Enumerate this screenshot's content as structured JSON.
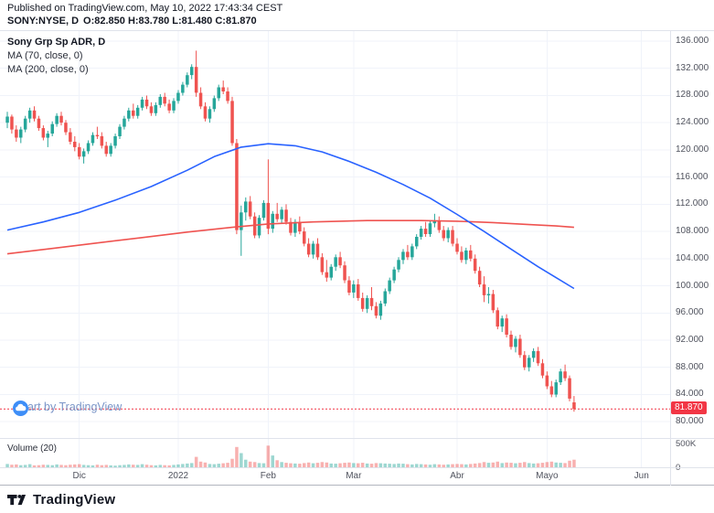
{
  "header": {
    "published_line": "Published on TradingView.com, May 10, 2022 17:43:34 CEST",
    "symbol": "SONY:NYSE, D",
    "ohlc": "O:82.850 H:83.780 L:81.480 C:81.870"
  },
  "legend": {
    "title": "Sony Grp Sp ADR, D",
    "ma1": "MA (70, close, 0)",
    "ma2": "MA (200, close, 0)"
  },
  "watermark": {
    "label": "Chart by TradingView"
  },
  "volume_pane": {
    "label": "Volume (20)",
    "axis_ticks": [
      "500K",
      "0"
    ]
  },
  "price_axis": {
    "min": 77.6,
    "max": 137.48,
    "ticks": [
      "136.000",
      "132.000",
      "128.000",
      "124.000",
      "120.000",
      "116.000",
      "112.000",
      "108.000",
      "104.000",
      "100.000",
      "96.000",
      "92.000",
      "88.000",
      "84.000",
      "80.000"
    ]
  },
  "last_price": {
    "value": 81.87,
    "label": "81.870"
  },
  "x_axis": {
    "ticks": [
      {
        "label": "Dic",
        "i": 16
      },
      {
        "label": "2022",
        "i": 38
      },
      {
        "label": "Feb",
        "i": 58
      },
      {
        "label": "Mar",
        "i": 77
      },
      {
        "label": "Abr",
        "i": 100
      },
      {
        "label": "Mayo",
        "i": 120
      },
      {
        "label": "Jun",
        "i": 141
      }
    ]
  },
  "footer": {
    "brand": "TradingView"
  },
  "colors": {
    "up": "#26a69a",
    "down": "#ef5350",
    "ma_fast": "#2962ff",
    "ma_slow": "#ef5350",
    "grid": "#f0f3fa",
    "vol_up": "rgba(38,166,154,0.45)",
    "vol_down": "rgba(239,83,80,0.45)",
    "last_line": "#f23645",
    "watermark_text": "#7b96c8",
    "watermark_logo": "#3e8ef7",
    "axis_text": "#50535e"
  },
  "chart_data": {
    "type": "candlestick",
    "symbol": "SONY:NYSE",
    "interval": "D",
    "title": "Sony Grp Sp ADR, D",
    "ylim": [
      77.6,
      137.48
    ],
    "volume_unit": "K",
    "vol_scale_k": 620,
    "candles": [
      [
        124.0,
        125.6,
        123.2,
        124.9,
        70
      ],
      [
        124.9,
        125.2,
        122.4,
        123.0,
        55
      ],
      [
        123.0,
        123.6,
        121.2,
        121.8,
        60
      ],
      [
        121.8,
        123.4,
        121.0,
        123.0,
        45
      ],
      [
        123.0,
        125.0,
        122.6,
        124.6,
        50
      ],
      [
        124.6,
        126.2,
        124.0,
        125.8,
        65
      ],
      [
        125.8,
        126.4,
        124.2,
        124.6,
        40
      ],
      [
        124.6,
        125.0,
        122.8,
        123.2,
        45
      ],
      [
        123.2,
        123.6,
        121.4,
        121.8,
        55
      ],
      [
        121.8,
        122.8,
        120.4,
        122.4,
        50
      ],
      [
        122.4,
        124.2,
        122.0,
        123.8,
        45
      ],
      [
        123.8,
        125.4,
        123.4,
        125.0,
        60
      ],
      [
        125.0,
        125.6,
        123.6,
        124.0,
        50
      ],
      [
        124.0,
        124.4,
        122.2,
        122.6,
        45
      ],
      [
        122.6,
        123.2,
        120.8,
        121.2,
        55
      ],
      [
        121.2,
        122.0,
        119.8,
        120.4,
        60
      ],
      [
        120.4,
        121.0,
        118.6,
        119.0,
        65
      ],
      [
        119.0,
        120.2,
        118.0,
        119.8,
        50
      ],
      [
        119.8,
        121.4,
        119.4,
        121.0,
        45
      ],
      [
        121.0,
        122.6,
        120.6,
        122.2,
        40
      ],
      [
        122.2,
        123.4,
        121.6,
        122.0,
        55
      ],
      [
        122.0,
        122.6,
        120.2,
        120.6,
        45
      ],
      [
        120.6,
        121.2,
        119.0,
        119.4,
        50
      ],
      [
        119.4,
        121.0,
        119.0,
        120.6,
        40
      ],
      [
        120.6,
        122.4,
        120.2,
        122.0,
        35
      ],
      [
        122.0,
        123.8,
        121.6,
        123.4,
        45
      ],
      [
        123.4,
        125.0,
        123.0,
        124.6,
        50
      ],
      [
        124.6,
        126.2,
        124.2,
        125.8,
        60
      ],
      [
        125.8,
        126.8,
        124.6,
        125.0,
        55
      ],
      [
        125.0,
        126.6,
        124.6,
        126.2,
        50
      ],
      [
        126.2,
        127.8,
        125.8,
        127.4,
        65
      ],
      [
        127.4,
        128.0,
        126.0,
        126.4,
        55
      ],
      [
        126.4,
        127.0,
        125.0,
        125.4,
        45
      ],
      [
        125.4,
        127.0,
        125.0,
        126.6,
        40
      ],
      [
        126.6,
        128.2,
        126.2,
        127.8,
        50
      ],
      [
        127.8,
        128.4,
        126.4,
        126.8,
        45
      ],
      [
        126.8,
        127.4,
        125.4,
        125.8,
        40
      ],
      [
        125.8,
        127.6,
        125.4,
        127.2,
        50
      ],
      [
        127.2,
        128.8,
        126.8,
        128.4,
        60
      ],
      [
        128.4,
        130.0,
        128.0,
        129.6,
        70
      ],
      [
        129.6,
        131.4,
        129.2,
        131.0,
        80
      ],
      [
        131.0,
        132.6,
        130.4,
        132.2,
        90
      ],
      [
        132.2,
        134.6,
        127.8,
        128.4,
        220
      ],
      [
        128.4,
        129.2,
        126.0,
        126.4,
        120
      ],
      [
        126.4,
        127.0,
        124.2,
        124.6,
        100
      ],
      [
        124.6,
        126.4,
        124.0,
        126.0,
        70
      ],
      [
        126.0,
        128.0,
        125.6,
        127.6,
        65
      ],
      [
        127.6,
        129.6,
        127.2,
        129.2,
        75
      ],
      [
        129.2,
        130.2,
        128.2,
        128.6,
        85
      ],
      [
        128.6,
        129.2,
        126.8,
        127.2,
        95
      ],
      [
        127.2,
        127.8,
        120.6,
        121.0,
        180
      ],
      [
        121.0,
        121.6,
        107.6,
        108.2,
        430
      ],
      [
        108.2,
        111.8,
        104.4,
        110.8,
        300
      ],
      [
        110.8,
        113.0,
        109.6,
        112.4,
        160
      ],
      [
        112.4,
        113.2,
        109.8,
        110.2,
        120
      ],
      [
        110.2,
        110.8,
        107.0,
        107.4,
        110
      ],
      [
        107.4,
        110.4,
        107.0,
        110.0,
        90
      ],
      [
        110.0,
        112.6,
        109.6,
        112.2,
        85
      ],
      [
        112.2,
        118.6,
        107.6,
        108.4,
        460
      ],
      [
        108.4,
        111.0,
        107.8,
        110.6,
        250
      ],
      [
        110.6,
        112.2,
        109.4,
        109.8,
        150
      ],
      [
        109.8,
        111.6,
        109.2,
        111.2,
        110
      ],
      [
        111.2,
        112.0,
        109.0,
        109.4,
        95
      ],
      [
        109.4,
        110.0,
        107.4,
        107.8,
        85
      ],
      [
        107.8,
        109.8,
        107.2,
        109.4,
        80
      ],
      [
        109.4,
        110.2,
        107.6,
        108.0,
        75
      ],
      [
        108.0,
        108.6,
        105.8,
        106.2,
        90
      ],
      [
        106.2,
        107.0,
        104.2,
        104.6,
        100
      ],
      [
        104.6,
        106.6,
        104.0,
        106.2,
        85
      ],
      [
        106.2,
        107.0,
        103.8,
        104.2,
        95
      ],
      [
        104.2,
        104.8,
        101.6,
        102.0,
        110
      ],
      [
        102.0,
        103.8,
        100.6,
        101.2,
        100
      ],
      [
        101.2,
        103.2,
        100.8,
        102.8,
        80
      ],
      [
        102.8,
        104.6,
        102.2,
        104.2,
        75
      ],
      [
        104.2,
        105.0,
        102.6,
        103.0,
        85
      ],
      [
        103.0,
        103.6,
        100.4,
        100.8,
        95
      ],
      [
        100.8,
        101.4,
        98.6,
        99.0,
        100
      ],
      [
        99.0,
        100.8,
        98.2,
        100.2,
        90
      ],
      [
        100.2,
        101.0,
        97.8,
        98.2,
        85
      ],
      [
        98.2,
        99.0,
        96.2,
        96.6,
        95
      ],
      [
        96.6,
        98.6,
        96.0,
        98.2,
        80
      ],
      [
        98.2,
        99.8,
        96.4,
        97.0,
        75
      ],
      [
        97.0,
        97.6,
        95.2,
        95.6,
        90
      ],
      [
        95.6,
        97.8,
        95.0,
        97.4,
        85
      ],
      [
        97.4,
        99.6,
        97.0,
        99.2,
        80
      ],
      [
        99.2,
        101.2,
        98.8,
        100.8,
        75
      ],
      [
        100.8,
        102.8,
        100.4,
        102.4,
        70
      ],
      [
        102.4,
        104.2,
        102.0,
        103.8,
        80
      ],
      [
        103.8,
        105.4,
        103.2,
        105.0,
        75
      ],
      [
        105.0,
        106.0,
        103.8,
        104.2,
        65
      ],
      [
        104.2,
        106.2,
        103.8,
        105.8,
        60
      ],
      [
        105.8,
        107.6,
        105.4,
        107.2,
        70
      ],
      [
        107.2,
        108.8,
        106.8,
        108.4,
        65
      ],
      [
        108.4,
        109.4,
        107.2,
        107.6,
        60
      ],
      [
        107.6,
        109.6,
        107.2,
        109.2,
        55
      ],
      [
        109.2,
        110.6,
        108.6,
        109.6,
        65
      ],
      [
        109.6,
        110.2,
        107.8,
        108.2,
        60
      ],
      [
        108.2,
        108.8,
        106.6,
        107.0,
        55
      ],
      [
        107.0,
        108.6,
        106.4,
        108.2,
        60
      ],
      [
        108.2,
        108.8,
        105.8,
        106.2,
        65
      ],
      [
        106.2,
        107.0,
        104.6,
        105.0,
        70
      ],
      [
        105.0,
        105.8,
        103.4,
        103.8,
        65
      ],
      [
        103.8,
        105.6,
        103.2,
        105.2,
        60
      ],
      [
        105.2,
        106.0,
        103.6,
        104.0,
        70
      ],
      [
        104.0,
        104.6,
        101.8,
        102.2,
        80
      ],
      [
        102.2,
        102.8,
        99.8,
        100.2,
        90
      ],
      [
        100.2,
        101.4,
        97.6,
        98.6,
        110
      ],
      [
        98.6,
        99.8,
        97.4,
        98.8,
        95
      ],
      [
        98.8,
        99.4,
        96.0,
        96.4,
        100
      ],
      [
        96.4,
        96.8,
        93.6,
        94.0,
        120
      ],
      [
        94.0,
        95.6,
        93.2,
        95.2,
        90
      ],
      [
        95.2,
        95.8,
        92.4,
        92.8,
        100
      ],
      [
        92.8,
        93.4,
        90.6,
        91.0,
        95
      ],
      [
        91.0,
        92.6,
        90.2,
        92.2,
        85
      ],
      [
        92.2,
        92.8,
        89.4,
        89.8,
        95
      ],
      [
        89.8,
        90.4,
        87.6,
        88.0,
        110
      ],
      [
        88.0,
        89.8,
        87.4,
        89.4,
        90
      ],
      [
        89.4,
        90.8,
        88.8,
        90.4,
        80
      ],
      [
        90.4,
        91.0,
        88.2,
        88.6,
        85
      ],
      [
        88.6,
        89.2,
        86.4,
        86.8,
        95
      ],
      [
        86.8,
        87.4,
        84.8,
        85.2,
        110
      ],
      [
        85.2,
        86.0,
        83.6,
        84.0,
        120
      ],
      [
        84.0,
        86.2,
        83.6,
        85.8,
        100
      ],
      [
        85.8,
        87.8,
        85.4,
        87.4,
        95
      ],
      [
        87.4,
        88.4,
        86.0,
        86.4,
        90
      ],
      [
        86.4,
        86.8,
        83.0,
        83.4,
        140
      ],
      [
        82.85,
        83.78,
        81.48,
        81.87,
        160
      ]
    ],
    "ma70": [
      [
        0,
        108.2
      ],
      [
        8,
        109.4
      ],
      [
        16,
        110.8
      ],
      [
        24,
        112.6
      ],
      [
        32,
        114.6
      ],
      [
        40,
        117.0
      ],
      [
        46,
        119.0
      ],
      [
        52,
        120.4
      ],
      [
        58,
        120.9
      ],
      [
        64,
        120.6
      ],
      [
        70,
        119.7
      ],
      [
        76,
        118.3
      ],
      [
        82,
        116.7
      ],
      [
        88,
        114.9
      ],
      [
        94,
        112.9
      ],
      [
        100,
        110.5
      ],
      [
        106,
        108.0
      ],
      [
        112,
        105.4
      ],
      [
        118,
        102.8
      ],
      [
        122,
        101.2
      ],
      [
        126,
        99.6
      ]
    ],
    "ma200": [
      [
        0,
        104.7
      ],
      [
        10,
        105.5
      ],
      [
        20,
        106.3
      ],
      [
        30,
        107.1
      ],
      [
        40,
        107.9
      ],
      [
        50,
        108.6
      ],
      [
        58,
        109.1
      ],
      [
        68,
        109.4
      ],
      [
        80,
        109.6
      ],
      [
        92,
        109.6
      ],
      [
        100,
        109.5
      ],
      [
        108,
        109.3
      ],
      [
        116,
        109.0
      ],
      [
        122,
        108.8
      ],
      [
        126,
        108.6
      ]
    ]
  }
}
